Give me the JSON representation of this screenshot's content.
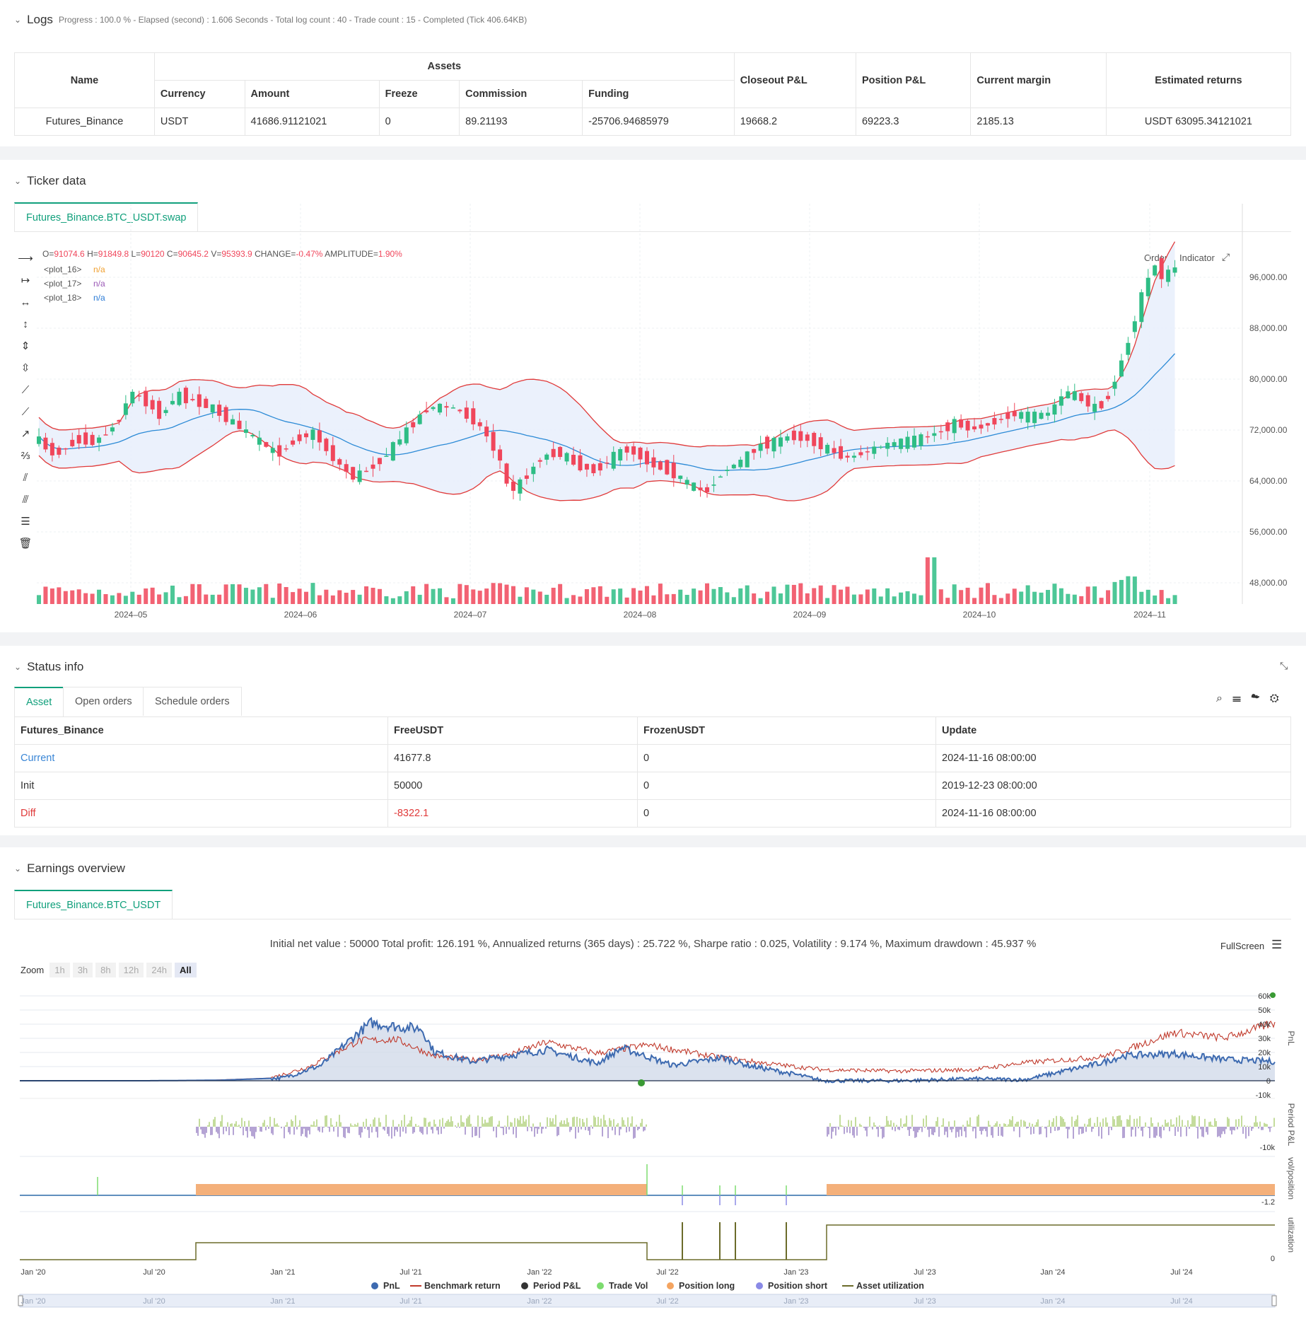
{
  "logs": {
    "title": "Logs",
    "progress": "Progress : 100.0 % - Elapsed (second) : 1.606  Seconds - Total log count : 40 - Trade count : 15 - Completed (Tick 406.64KB)"
  },
  "assets_table": {
    "headers": {
      "name": "Name",
      "assets": "Assets",
      "currency": "Currency",
      "amount": "Amount",
      "freeze": "Freeze",
      "commission": "Commission",
      "funding": "Funding",
      "closeout": "Closeout P&L",
      "position": "Position P&L",
      "margin": "Current margin",
      "estimated": "Estimated returns"
    },
    "row": {
      "name": "Futures_Binance",
      "currency": "USDT",
      "amount": "41686.91121021",
      "freeze": "0",
      "commission": "89.21193",
      "funding": "-25706.94685979",
      "closeout": "19668.2",
      "position": "69223.3",
      "margin": "2185.13",
      "estimated": "USDT 63095.34121021"
    }
  },
  "ticker": {
    "title": "Ticker data",
    "tab": "Futures_Binance.BTC_USDT.swap",
    "ohlc": {
      "o_label": "O=",
      "o": "91074.6",
      "h_label": "H=",
      "h": "91849.8",
      "l_label": "L=",
      "l": "90120",
      "c_label": "C=",
      "c": "90645.2",
      "v_label": "V=",
      "v": "95393.9",
      "change_label": "CHANGE=",
      "change": "-0.47%",
      "amp_label": "AMPLITUDE=",
      "amp": "1.90%"
    },
    "plots": [
      {
        "name": "<plot_16>",
        "value": "n/a",
        "color": "#f0a030"
      },
      {
        "name": "<plot_17>",
        "value": "n/a",
        "color": "#9b59b6"
      },
      {
        "name": "<plot_18>",
        "value": "n/a",
        "color": "#2b7bd6"
      }
    ],
    "buttons": {
      "order": "Order",
      "indicator": "Indicator"
    },
    "y_ticks": [
      "96,000.00",
      "88,000.00",
      "80,000.00",
      "72,000.00",
      "64,000.00",
      "56,000.00",
      "48,000.00"
    ],
    "x_ticks": [
      "2024–05",
      "2024–06",
      "2024–07",
      "2024–08",
      "2024–09",
      "2024–10",
      "2024–11"
    ]
  },
  "status": {
    "title": "Status info",
    "tabs": [
      "Asset",
      "Open orders",
      "Schedule orders"
    ],
    "headers": [
      "Futures_Binance",
      "FreeUSDT",
      "FrozenUSDT",
      "Update"
    ],
    "rows": [
      [
        "Current",
        "41677.8",
        "0",
        "2024-11-16 08:00:00"
      ],
      [
        "Init",
        "50000",
        "0",
        "2019-12-23 08:00:00"
      ],
      [
        "Diff",
        "-8322.1",
        "0",
        "2024-11-16 08:00:00"
      ]
    ]
  },
  "earnings": {
    "title": "Earnings overview",
    "tab": "Futures_Binance.BTC_USDT",
    "summary": "Initial net value : 50000 Total profit: 126.191 %, Annualized returns (365 days) : 25.722 %, Sharpe ratio : 0.025, Volatility : 9.174 %, Maximum drawdown : 45.937 %",
    "fullscreen": "FullScreen",
    "zoom_label": "Zoom",
    "zoom_options": [
      "1h",
      "3h",
      "8h",
      "12h",
      "24h",
      "All"
    ],
    "pnl_ticks": [
      "60k",
      "50k",
      "40k",
      "30k",
      "20k",
      "10k",
      "0",
      "-10k"
    ],
    "axis_labels": {
      "pnl": "PnL",
      "period": "Period P&L",
      "vol": "vol/position",
      "util": "utilization"
    },
    "period_tick": "-10k",
    "vol_tick": "-1.2",
    "util_tick": "0",
    "x_ticks": [
      "Jan '20",
      "Jul '20",
      "Jan '21",
      "Jul '21",
      "Jan '22",
      "Jul '22",
      "Jan '23",
      "Jul '23",
      "Jan '24",
      "Jul '24"
    ],
    "legend": [
      {
        "label": "PnL",
        "color": "#3d6ab0",
        "shape": "dot"
      },
      {
        "label": "Benchmark return",
        "color": "#c0392b",
        "shape": "line"
      },
      {
        "label": "Period P&L",
        "color": "#333333",
        "shape": "dot"
      },
      {
        "label": "Trade Vol",
        "color": "#7ddc6f",
        "shape": "dot"
      },
      {
        "label": "Position long",
        "color": "#f4a460",
        "shape": "dot"
      },
      {
        "label": "Position short",
        "color": "#8a8ae6",
        "shape": "dot"
      },
      {
        "label": "Asset utilization",
        "color": "#6b6b2a",
        "shape": "line"
      }
    ]
  },
  "colors": {
    "accent": "#11a07c",
    "up": "#2ebd85",
    "down": "#f0465b",
    "band": "#e03a3a",
    "mid": "#2b8ad6",
    "diff_red": "#e03a3a",
    "link_blue": "#3a86d6"
  }
}
